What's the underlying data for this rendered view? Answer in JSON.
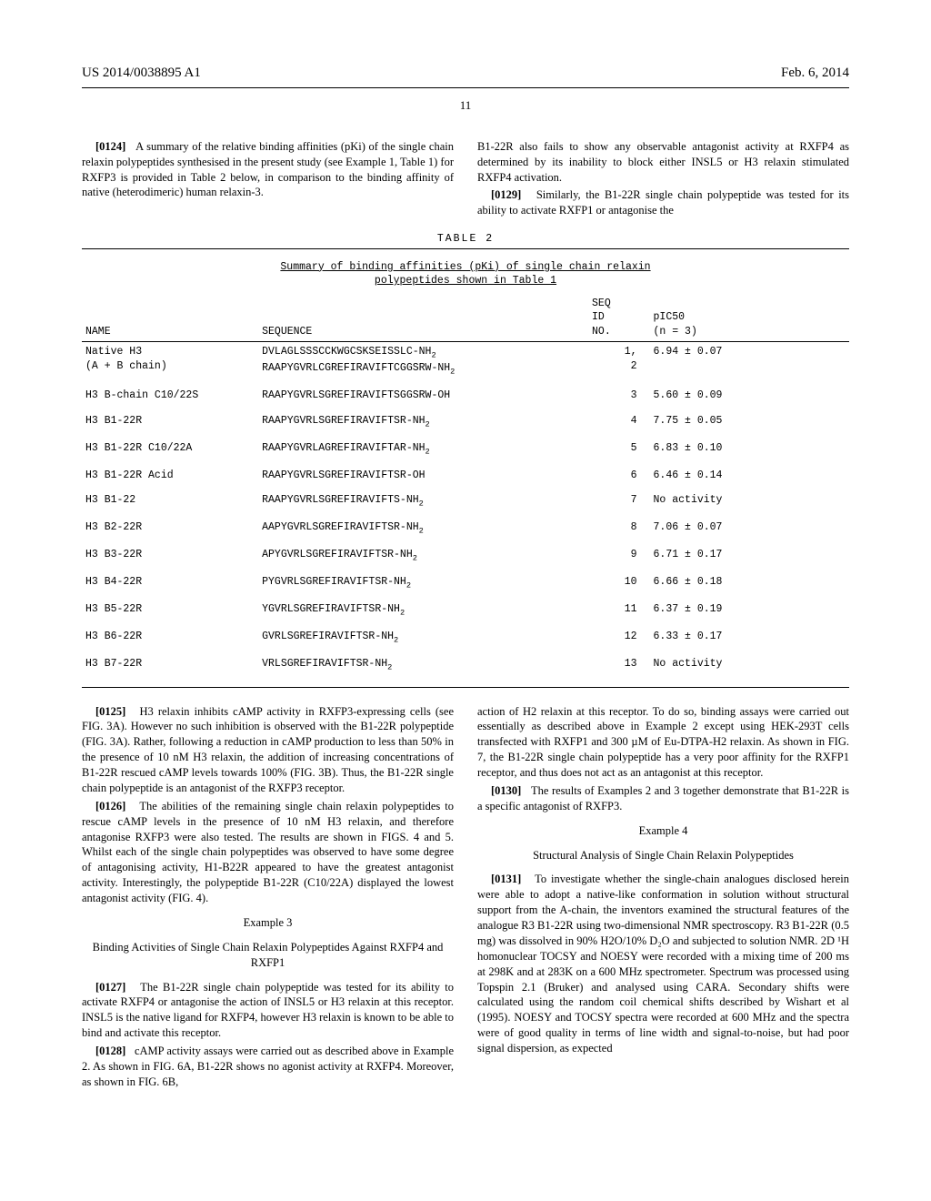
{
  "header": {
    "docnum": "US 2014/0038895 A1",
    "date": "Feb. 6, 2014"
  },
  "pagenum": "11",
  "para0124": {
    "num": "[0124]",
    "text": "A summary of the relative binding affinities (pKi) of the single chain relaxin polypeptides synthesised in the present study (see Example 1, Table 1) for RXFP3 is provided in Table 2 below, in comparison to the binding affinity of native (heterodimeric) human relaxin-3."
  },
  "para0128b": "B1-22R also fails to show any observable antagonist activity at RXFP4 as determined by its inability to block either INSL5 or H3 relaxin stimulated RXFP4 activation.",
  "para0129": {
    "num": "[0129]",
    "text": "Similarly, the B1-22R single chain polypeptide was tested for its ability to activate RXFP1 or antagonise the"
  },
  "table": {
    "label": "TABLE 2",
    "subtitle1": "Summary of binding affinities (pKi) of single chain relaxin",
    "subtitle2": "polypeptides shown in Table 1",
    "headers": {
      "name": "NAME",
      "sequence": "SEQUENCE",
      "seqid": "SEQ\nID\nNO.",
      "pic50": "pIC50\n(n = 3)"
    },
    "rows": [
      {
        "name": "Native H3\n(A + B chain)",
        "seq": "DVLAGLSSSCCKWGCSKSEISSLC-NH₂\nRAAPYGVRLCGREFIRAVIFTCGGSRW-NH₂",
        "id": "1,\n2",
        "val": "6.94 ± 0.07"
      },
      {
        "name": "H3 B-chain C10/22S",
        "seq": "RAAPYGVRLSGREFIRAVIFTSGGSRW-OH",
        "id": "3",
        "val": "5.60 ± 0.09"
      },
      {
        "name": "H3 B1-22R",
        "seq": "RAAPYGVRLSGREFIRAVIFTSR-NH₂",
        "id": "4",
        "val": "7.75 ± 0.05"
      },
      {
        "name": "H3 B1-22R C10/22A",
        "seq": "RAAPYGVRLAGREFIRAVIFTAR-NH₂",
        "id": "5",
        "val": "6.83 ± 0.10"
      },
      {
        "name": "H3 B1-22R Acid",
        "seq": "RAAPYGVRLSGREFIRAVIFTSR-OH",
        "id": "6",
        "val": "6.46 ± 0.14"
      },
      {
        "name": "H3 B1-22",
        "seq": "RAAPYGVRLSGREFIRAVIFTS-NH₂",
        "id": "7",
        "val": "No activity"
      },
      {
        "name": "H3 B2-22R",
        "seq": "AAPYGVRLSGREFIRAVIFTSR-NH₂",
        "id": "8",
        "val": "7.06 ± 0.07"
      },
      {
        "name": "H3 B3-22R",
        "seq": "APYGVRLSGREFIRAVIFTSR-NH₂",
        "id": "9",
        "val": "6.71 ± 0.17"
      },
      {
        "name": "H3 B4-22R",
        "seq": "PYGVRLSGREFIRAVIFTSR-NH₂",
        "id": "10",
        "val": "6.66 ± 0.18"
      },
      {
        "name": "H3 B5-22R",
        "seq": "YGVRLSGREFIRAVIFTSR-NH₂",
        "id": "11",
        "val": "6.37 ± 0.19"
      },
      {
        "name": "H3 B6-22R",
        "seq": "GVRLSGREFIRAVIFTSR-NH₂",
        "id": "12",
        "val": "6.33 ± 0.17"
      },
      {
        "name": "H3 B7-22R",
        "seq": "VRLSGREFIRAVIFTSR-NH₂",
        "id": "13",
        "val": "No activity"
      }
    ]
  },
  "para0125": {
    "num": "[0125]",
    "text": "H3 relaxin inhibits cAMP activity in RXFP3-expressing cells (see FIG. 3A). However no such inhibition is observed with the B1-22R polypeptide (FIG. 3A). Rather, following a reduction in cAMP production to less than 50% in the presence of 10 nM H3 relaxin, the addition of increasing concentrations of B1-22R rescued cAMP levels towards 100% (FIG. 3B). Thus, the B1-22R single chain polypeptide is an antagonist of the RXFP3 receptor."
  },
  "para0126": {
    "num": "[0126]",
    "text": "The abilities of the remaining single chain relaxin polypeptides to rescue cAMP levels in the presence of 10 nM H3 relaxin, and therefore antagonise RXFP3 were also tested. The results are shown in FIGS. 4 and 5. Whilst each of the single chain polypeptides was observed to have some degree of antagonising activity, H1-B22R appeared to have the greatest antagonist activity. Interestingly, the polypeptide B1-22R (C10/22A) displayed the lowest antagonist activity (FIG. 4)."
  },
  "example3": {
    "title": "Example 3",
    "subtitle": "Binding Activities of Single Chain Relaxin Polypeptides Against RXFP4 and RXFP1"
  },
  "para0127": {
    "num": "[0127]",
    "text": "The B1-22R single chain polypeptide was tested for its ability to activate RXFP4 or antagonise the action of INSL5 or H3 relaxin at this receptor. INSL5 is the native ligand for RXFP4, however H3 relaxin is known to be able to bind and activate this receptor."
  },
  "para0128": {
    "num": "[0128]",
    "text": "cAMP activity assays were carried out as described above in Example 2. As shown in FIG. 6A, B1-22R shows no agonist activity at RXFP4. Moreover, as shown in FIG. 6B,"
  },
  "para0129b": "action of H2 relaxin at this receptor. To do so, binding assays were carried out essentially as described above in Example 2 except using HEK-293T cells transfected with RXFP1 and 300 µM of Eu-DTPA-H2 relaxin. As shown in FIG. 7, the B1-22R single chain polypeptide has a very poor affinity for the RXFP1 receptor, and thus does not act as an antagonist at this receptor.",
  "para0130": {
    "num": "[0130]",
    "text": "The results of Examples 2 and 3 together demonstrate that B1-22R is a specific antagonist of RXFP3."
  },
  "example4": {
    "title": "Example 4",
    "subtitle": "Structural Analysis of Single Chain Relaxin Polypeptides"
  },
  "para0131": {
    "num": "[0131]",
    "text": "To investigate whether the single-chain analogues disclosed herein were able to adopt a native-like conformation in solution without structural support from the A-chain, the inventors examined the structural features of the analogue R3 B1-22R using two-dimensional NMR spectroscopy. R3 B1-22R (0.5 mg) was dissolved in 90% H2O/10% D₂O and subjected to solution NMR. 2D ¹H homonuclear TOCSY and NOESY were recorded with a mixing time of 200 ms at 298K and at 283K on a 600 MHz spectrometer. Spectrum was processed using Topspin 2.1 (Bruker) and analysed using CARA. Secondary shifts were calculated using the random coil chemical shifts described by Wishart et al (1995). NOESY and TOCSY spectra were recorded at 600 MHz and the spectra were of good quality in terms of line width and signal-to-noise, but had poor signal dispersion, as expected"
  }
}
